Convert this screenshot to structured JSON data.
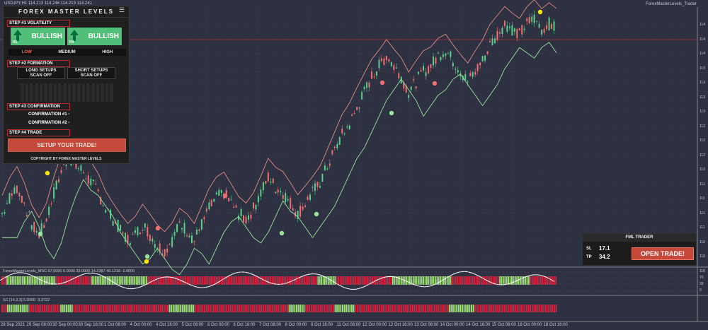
{
  "chart_header": {
    "symbol_line": "USDJPY,H1  114.213 114.246 114.213 114.241",
    "indicator_name": "ForexMasterLevels_Trader"
  },
  "panel": {
    "title": "FOREX MASTER LEVELS",
    "menu_icon": "hamburger-icon",
    "step1": "STEP #1 VOLATILITY",
    "bull_left": {
      "label": "BULLISH",
      "tf": "H1"
    },
    "bull_right": {
      "label": "BULLISH",
      "tf": "H4"
    },
    "levels": [
      "LOW",
      "MEDIUM",
      "HIGH"
    ],
    "active_level_color": "#ff5a5a",
    "step2": "STEP #2 FORMATION",
    "long_scan": {
      "line1": "LONG SETUPS",
      "line2": "SCAN OFF"
    },
    "short_scan": {
      "line1": "SHORT SETUPS",
      "line2": "SCAN OFF"
    },
    "step3": "STEP #3 CONFIRMATION",
    "confirmation1": "CONFIRMATION #1 -",
    "confirmation2": "CONFIRMATION #2 -",
    "step4": "STEP #4 TRADE",
    "setup_button": "SETUP YOUR TRADE!",
    "copyright": "COPYRIGHT BY FOREX MASTER LEVELS"
  },
  "trader": {
    "title": "FML TRADER",
    "sl_label": "SL",
    "sl_value": "17.1",
    "tp_label": "TP",
    "tp_value": "34.2",
    "open_button": "OPEN TRADE!"
  },
  "sub1_label": "ForexMasterLevels_MSC 67.0000 0.0000 33.0000 14.2387 46.1218 -1.0000",
  "sub2_label": "SC [14,3,3] 5.0000 -3.3722",
  "y_axis": [
    "114",
    "114",
    "114",
    "113",
    "113",
    "113",
    "113",
    "112",
    "112",
    "112",
    "112",
    "111",
    "111",
    "111",
    "111",
    "110",
    "110"
  ],
  "sub1_axis": [
    "110",
    "70",
    "33",
    "0"
  ],
  "x_axis": [
    "28 Sep 2021",
    "29 Sep 08:00",
    "30 Sep 00:00",
    "30 Sep 16:00",
    "1 Oct 08:00",
    "4 Oct 00:00",
    "4 Oct 16:00",
    "5 Oct 08:00",
    "6 Oct 00:00",
    "6 Oct 16:00",
    "7 Oct 08:00",
    "8 Oct 00:00",
    "8 Oct 16:00",
    "11 Oct 08:00",
    "12 Oct 00:00",
    "12 Oct 16:00",
    "13 Oct 08:00",
    "14 Oct 00:00",
    "14 Oct 16:00",
    "15 Oct 08:00",
    "18 Oct 00:00",
    "18 Oct 16:00"
  ],
  "colors": {
    "bg": "#2d3142",
    "bull": "#5ccf8a",
    "bear": "#f07070",
    "band": "#e58a80",
    "trail": "#9be29b",
    "hist_red": "#d4233f",
    "hist_green": "#9fe07a"
  },
  "chart_data": {
    "type": "candlestick",
    "close_path": [
      110.7,
      111.0,
      111.2,
      110.9,
      110.5,
      110.3,
      110.6,
      111.1,
      111.5,
      111.8,
      111.6,
      111.5,
      111.3,
      111.1,
      110.8,
      110.6,
      110.4,
      110.2,
      110.3,
      110.5,
      110.3,
      110.1,
      110.0,
      110.2,
      110.5,
      110.4,
      110.2,
      110.5,
      110.8,
      111.0,
      111.1,
      110.9,
      110.7,
      110.6,
      110.8,
      111.1,
      111.4,
      111.2,
      111.1,
      110.9,
      110.7,
      110.9,
      111.1,
      111.3,
      111.6,
      111.9,
      112.2,
      112.4,
      112.7,
      113.0,
      113.3,
      113.5,
      113.7,
      113.5,
      113.3,
      113.0,
      113.2,
      113.4,
      113.5,
      113.7,
      113.8,
      113.6,
      113.4,
      113.2,
      113.4,
      113.6,
      113.9,
      114.1,
      114.3,
      114.2,
      114.1,
      114.3,
      114.4,
      114.2,
      114.3,
      114.2
    ]
  }
}
